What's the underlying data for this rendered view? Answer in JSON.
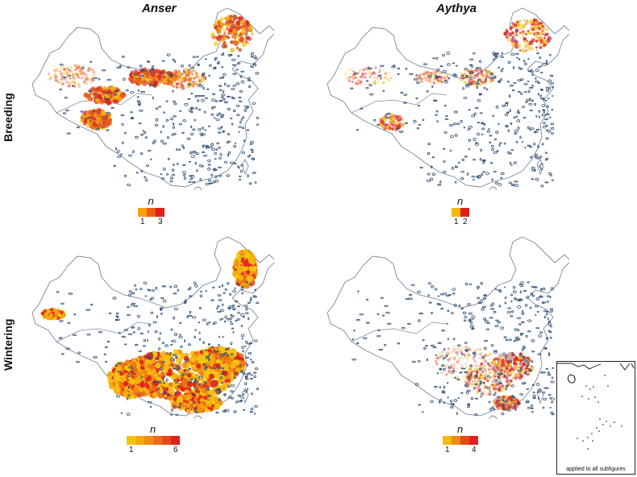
{
  "columns": [
    "Anser",
    "Aythya"
  ],
  "rows": [
    "Breeding",
    "Wintering"
  ],
  "legend_symbol": "n",
  "panels": [
    {
      "id": "anser-breeding",
      "legend_colors": [
        "#f6a20a",
        "#ef5a16",
        "#e0201a"
      ],
      "legend_labels": [
        "1",
        "3"
      ],
      "label_pos": [
        0,
        2
      ]
    },
    {
      "id": "aythya-breeding",
      "legend_colors": [
        "#f6b80f",
        "#e0201a"
      ],
      "legend_labels": [
        "1",
        "2"
      ],
      "label_pos": [
        0,
        1
      ]
    },
    {
      "id": "anser-wintering",
      "legend_colors": [
        "#f6c40f",
        "#f5a90d",
        "#f38a12",
        "#ee6a16",
        "#e8481a",
        "#e0201a"
      ],
      "legend_labels": [
        "1",
        "6"
      ],
      "label_pos": [
        0,
        5
      ]
    },
    {
      "id": "aythya-wintering",
      "legend_colors": [
        "#f6b80f",
        "#f08a14",
        "#e8481a",
        "#e0201a"
      ],
      "legend_labels": [
        "1",
        "4"
      ],
      "label_pos": [
        0,
        3
      ]
    }
  ],
  "inset_caption": "applied to all subfigures",
  "colors": {
    "boundary": "#7b8797",
    "water": "#2a4b72",
    "low": "#f6c40f",
    "high": "#e0201a"
  }
}
